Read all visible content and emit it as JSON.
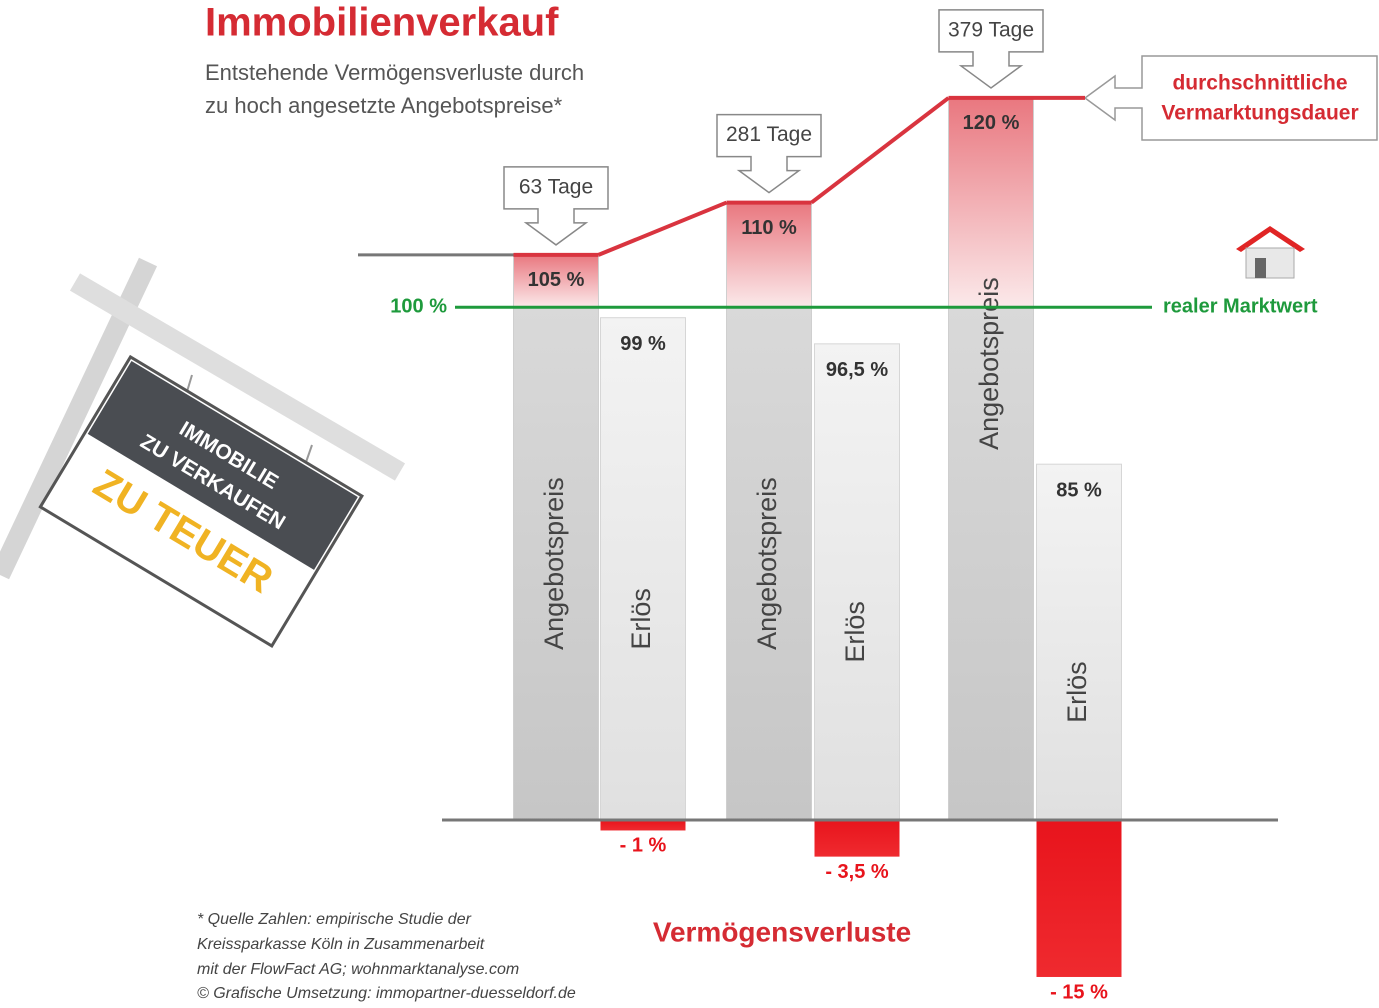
{
  "chart_data": {
    "type": "bar",
    "title": "Immobilienverkauf",
    "subtitle": [
      "Entstehende Vermögensverluste durch",
      "zu hoch angesetzte Angebotspreise*"
    ],
    "series": [
      {
        "name": "Angebotspreis",
        "color": "#d9343f",
        "values": [
          105,
          110,
          120
        ],
        "value_labels": [
          "105 %",
          "110 %",
          "120 %"
        ]
      },
      {
        "name": "Erlös",
        "color": "#e6e6e6",
        "values": [
          99,
          96.5,
          85
        ],
        "value_labels": [
          "99 %",
          "96,5 %",
          "85 %"
        ]
      },
      {
        "name": "Vermögensverluste",
        "color": "#e8141c",
        "values": [
          -1,
          -3.5,
          -15
        ],
        "value_labels": [
          "- 1 %",
          "- 3,5 %",
          "- 15 %"
        ]
      }
    ],
    "duration": {
      "label": [
        "durchschnittliche",
        "Vermarktungsdauer"
      ],
      "values": [
        63,
        281,
        379
      ],
      "value_labels": [
        "63 Tage",
        "281 Tage",
        "379 Tage"
      ]
    },
    "reference": {
      "value": 100,
      "label": "100 %",
      "name": "realer Marktwert",
      "color": "#1e9a3c"
    },
    "ylim": [
      51,
      122
    ],
    "footnote": [
      "* Quelle Zahlen: empirische Studie der",
      "Kreissparkasse Köln in Zusammenarbeit",
      "mit der FlowFact AG; wohnmarktanalyse.com",
      "© Grafische Umsetzung: immopartner-duesseldorf.de"
    ],
    "sign": [
      "IMMOBILIE",
      "ZU VERKAUFEN",
      "ZU TEUER"
    ]
  }
}
